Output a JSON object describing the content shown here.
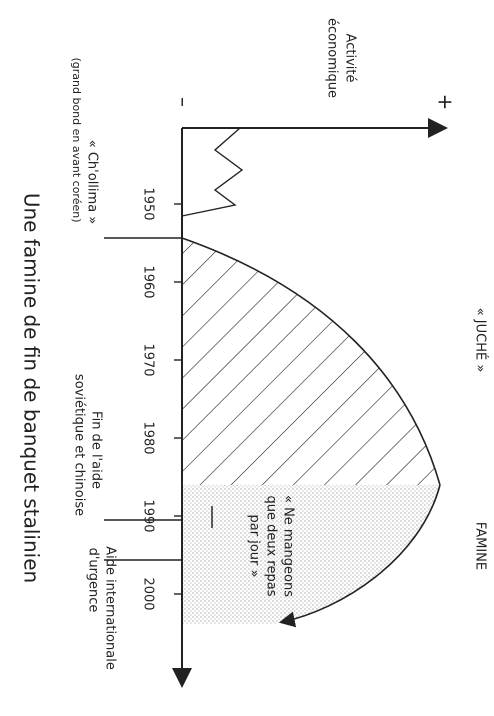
{
  "title": "Une famine de fin de banquet stalinien",
  "y_axis": {
    "label_line1": "Activité",
    "label_line2": "économique",
    "minus": "–",
    "plus": "+"
  },
  "years": [
    "1950",
    "1960",
    "1970",
    "1980",
    "1990",
    "2000"
  ],
  "phases": {
    "juche": "« JUCHÉ »",
    "famine": "FAMINE"
  },
  "annotations": {
    "chollima_line1": "« Ch'ollima »",
    "chollima_line2": "(grand bond en avant coréen)",
    "fin_aide_line1": "Fin de l'aide",
    "fin_aide_line2": "soviétique et chinoise",
    "aide_urgence_line1": "Aide internationale",
    "aide_urgence_line2": "d'urgence",
    "quote_line1": "« Ne mangeons",
    "quote_line2": "que deux repas",
    "quote_line3": "par jour »"
  }
}
